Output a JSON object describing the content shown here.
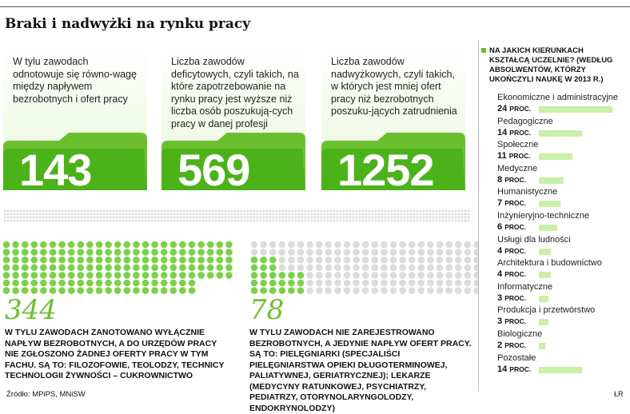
{
  "title": "Braki i nadwyżki na rynku pracy",
  "cards": [
    {
      "text": "W tylu zawodach odnotowuje się równo-wagę między napływem bezrobotnych i ofert pracy",
      "number": "143"
    },
    {
      "text": "Liczba zawodów deficytowych, czyli takich, na które zapotrzebowanie na rynku pracy jest wyższe niż liczba osób poszukują-cych pracy w danej profesji",
      "number": "569"
    },
    {
      "text": "Liczba zawodów nadwyżkowych, czyli takich, w których jest mniej ofert pracy niż bezrobotnych poszuku-jących zatrudnienia",
      "number": "1252"
    }
  ],
  "stat1": {
    "number": "344",
    "text": "W TYLU ZAWODACH ZANOTOWANO WYŁĄCZNIE NAPŁYW BEZROBOTNYCH, A DO URZĘDÓW PRACY NIE ZGŁOSZONO ŻADNEJ OFERTY PRACY W TYM FACHU. SĄ TO: FILOZOFOWIE, TEOLODZY, TECHNICY TECHNOLOGII ŻYWNOŚCI – CUKROWNICTWO"
  },
  "stat2": {
    "number": "78",
    "text": "W TYLU ZAWODACH NIE ZAREJESTROWANO BEZROBOTNYCH, A JEDYNIE NAPŁYW OFERT PRACY. SĄ TO: PIELĘGNIARKI (SPECJALIŚCI PIELĘGNIARSTWA OPIEKI DŁUGOTERMINOWEJ, PALIATYWNEJ, GERIATRYCZNEJ); LEKARZE (MEDYCYNY RATUNKOWEJ, PSYCHIATRZY, PEDIATRZY, OTORYNOLARYNGOLODZY, ENDOKRYNOLODZY)"
  },
  "source": "Źródło: MPiPS, MNiSW",
  "credit": "ŁR",
  "sidebar": {
    "question": "NA JAKICH KIERUNKACH KSZTAŁCĄ UCZELNIE? (WEDŁUG ABSOLWENTÓW, KTÓRZY UKOŃCZYLI NAUKĘ W 2013 R.)"
  },
  "chart_data": {
    "type": "bar",
    "categories": [
      "Ekonomiczne i administracyjne",
      "Pedagogiczne",
      "Społeczne",
      "Medyczne",
      "Humanistyczne",
      "Inżynieryjno-techniczne",
      "Usługi dla ludności",
      "Architektura i budownictwo",
      "Informatyczne",
      "Produkcja i przetwórstwo",
      "Biologiczne",
      "Pozostałe"
    ],
    "values": [
      24,
      14,
      11,
      8,
      7,
      6,
      4,
      4,
      3,
      3,
      2,
      14
    ],
    "value_labels": [
      "24",
      "14",
      "11",
      "8",
      "7",
      "6",
      "4",
      "4",
      "3",
      "3",
      "2",
      "14"
    ],
    "unit": "PROC.",
    "bar_color": "#c8f0a8"
  },
  "colors": {
    "accent": "#6bbf2e",
    "light": "#c8f0a8",
    "dot_gray": "#dcdcdc",
    "dot_green": "#7cd04a"
  }
}
